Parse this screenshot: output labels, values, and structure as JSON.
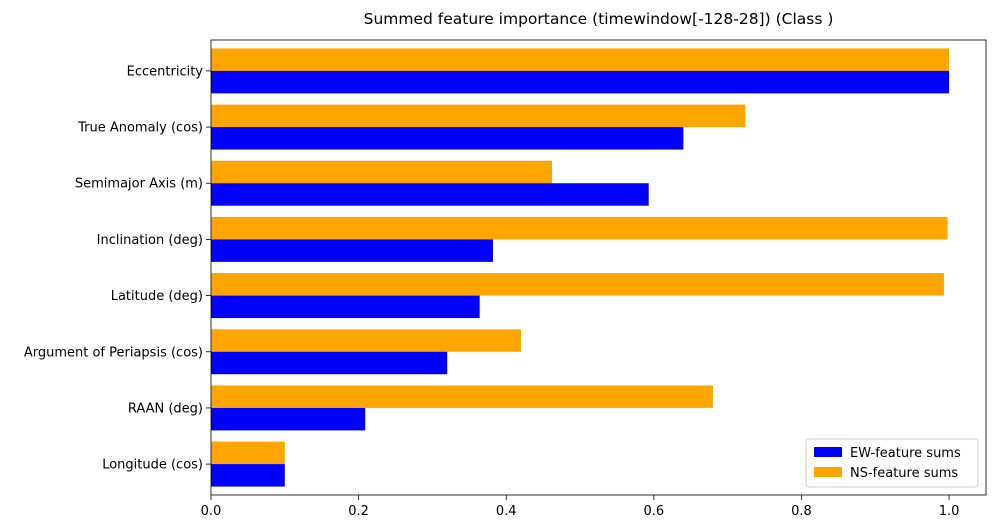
{
  "chart_data": {
    "type": "bar",
    "orientation": "horizontal",
    "title": "Summed feature importance (timewindow[-128-28]) (Class )",
    "xlabel": "",
    "ylabel": "",
    "xlim": [
      0,
      1.05
    ],
    "xticks": [
      "0.0",
      "0.2",
      "0.4",
      "0.6",
      "0.8",
      "1.0"
    ],
    "xtick_values": [
      0,
      0.2,
      0.4,
      0.6,
      0.8,
      1.0
    ],
    "categories": [
      "Eccentricity",
      "True Anomaly (cos)",
      "Semimajor Axis (m)",
      "Inclination (deg)",
      "Latitude (deg)",
      "Argument of Periapsis (cos)",
      "RAAN (deg)",
      "Longitude (cos)"
    ],
    "series": [
      {
        "name": "EW-feature sums",
        "color": "#0000ff",
        "values": [
          1.0,
          0.64,
          0.593,
          0.382,
          0.364,
          0.32,
          0.209,
          0.1
        ]
      },
      {
        "name": "NS-feature sums",
        "color": "#ffa500",
        "values": [
          1.0,
          0.724,
          0.462,
          0.998,
          0.993,
          0.42,
          0.68,
          0.1
        ]
      }
    ],
    "legend": "lower-right",
    "grid": false
  }
}
